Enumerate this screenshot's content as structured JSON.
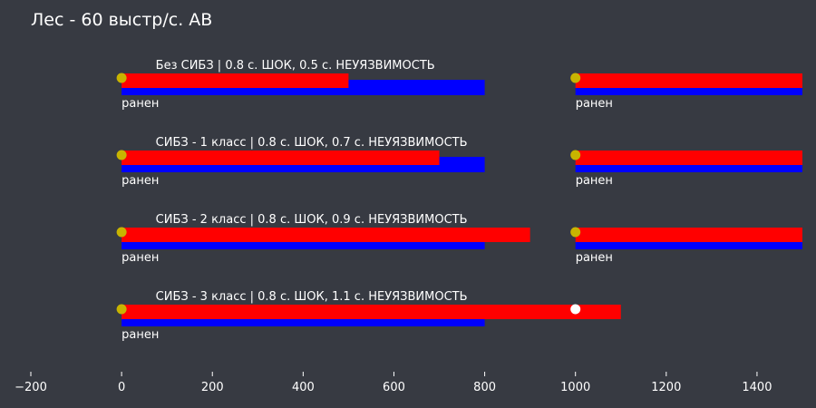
{
  "chart_data": {
    "type": "bar",
    "title": "Лес - 60 выстр/с. АВ",
    "xlim": [
      -200,
      1500
    ],
    "x_ticks": [
      -200,
      0,
      200,
      400,
      600,
      800,
      1000,
      1200,
      1400
    ],
    "x_tick_labels": [
      "−200",
      "0",
      "200",
      "400",
      "600",
      "800",
      "1000",
      "1200",
      "1400"
    ],
    "grid": false,
    "colors": {
      "background": "#373a42",
      "blue_bar": "#0000ff",
      "red_bar": "#ff0000",
      "shot_dot": "#c8b400",
      "open_dot": "#ffffff",
      "text": "#ffffff"
    },
    "rows": [
      {
        "label": "Без СИБЗ | 0.8 с. ШОК, 0.5 с. НЕУЯЗВИМОСТЬ",
        "blue_segments": [
          [
            0,
            800
          ],
          [
            1000,
            1500
          ]
        ],
        "red_segments": [
          [
            0,
            500
          ],
          [
            1000,
            1500
          ]
        ],
        "yellow_dots": [
          0,
          1000
        ],
        "white_dots": [],
        "annotations": [
          {
            "x": 0,
            "text": "ранен"
          },
          {
            "x": 1000,
            "text": "ранен"
          }
        ]
      },
      {
        "label": "СИБЗ - 1 класс | 0.8 с. ШОК, 0.7 с. НЕУЯЗВИМОСТЬ",
        "blue_segments": [
          [
            0,
            800
          ],
          [
            1000,
            1500
          ]
        ],
        "red_segments": [
          [
            0,
            700
          ],
          [
            1000,
            1500
          ]
        ],
        "yellow_dots": [
          0,
          1000
        ],
        "white_dots": [],
        "annotations": [
          {
            "x": 0,
            "text": "ранен"
          },
          {
            "x": 1000,
            "text": "ранен"
          }
        ]
      },
      {
        "label": "СИБЗ - 2 класс | 0.8 с. ШОК, 0.9 с. НЕУЯЗВИМОСТЬ",
        "blue_segments": [
          [
            0,
            800
          ],
          [
            1000,
            1500
          ]
        ],
        "red_segments": [
          [
            0,
            900
          ],
          [
            1000,
            1500
          ]
        ],
        "yellow_dots": [
          0,
          1000
        ],
        "white_dots": [],
        "annotations": [
          {
            "x": 0,
            "text": "ранен"
          },
          {
            "x": 1000,
            "text": "ранен"
          }
        ]
      },
      {
        "label": "СИБЗ - 3 класс | 0.8 с. ШОК, 1.1 с. НЕУЯЗВИМОСТЬ",
        "blue_segments": [
          [
            0,
            800
          ]
        ],
        "red_segments": [
          [
            0,
            1100
          ]
        ],
        "yellow_dots": [
          0
        ],
        "white_dots": [
          1000
        ],
        "annotations": [
          {
            "x": 0,
            "text": "ранен"
          }
        ]
      }
    ]
  }
}
